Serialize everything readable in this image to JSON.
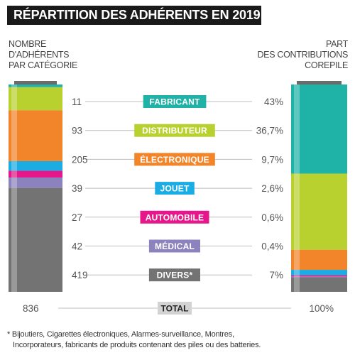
{
  "title": "RÉPARTITION DES ADHÉRENTS EN 2019",
  "left_axis_label": [
    "NOMBRE",
    "D'ADHÉRENTS",
    "PAR CATÉGORIE"
  ],
  "right_axis_label": [
    "PART",
    "DES CONTRIBUTIONS",
    "COREPILE"
  ],
  "chart_data": {
    "type": "bar",
    "categories": [
      "FABRICANT",
      "DISTRIBUTEUR",
      "ÉLECTRONIQUE",
      "JOUET",
      "AUTOMOBILE",
      "MÉDICAL",
      "DIVERS*"
    ],
    "series": [
      {
        "name": "NOMBRE D'ADHÉRENTS PAR CATÉGORIE",
        "values": [
          11,
          93,
          205,
          39,
          27,
          42,
          419
        ],
        "labels": [
          "11",
          "93",
          "205",
          "39",
          "27",
          "42",
          "419"
        ]
      },
      {
        "name": "PART DES CONTRIBUTIONS COREPILE",
        "values": [
          43,
          36.7,
          9.7,
          2.6,
          0.6,
          0.4,
          7
        ],
        "labels": [
          "43%",
          "36,7%",
          "9,7%",
          "2,6%",
          "0,6%",
          "0,4%",
          "7%"
        ]
      }
    ],
    "colors": [
      "#1fb3a8",
      "#b9d12f",
      "#f2842a",
      "#1aace3",
      "#e5178a",
      "#8c83be",
      "#737373"
    ],
    "total": {
      "label": "TOTAL",
      "left": "836",
      "right": "100%"
    },
    "left_total_value": 836,
    "right_total_value": 100
  },
  "footnote": [
    "* Bijoutiers, Cigarettes électroniques, Alarmes-surveillance, Montres,",
    "Incorporateurs, fabricants de produits contenant des piles ou des batteries."
  ]
}
